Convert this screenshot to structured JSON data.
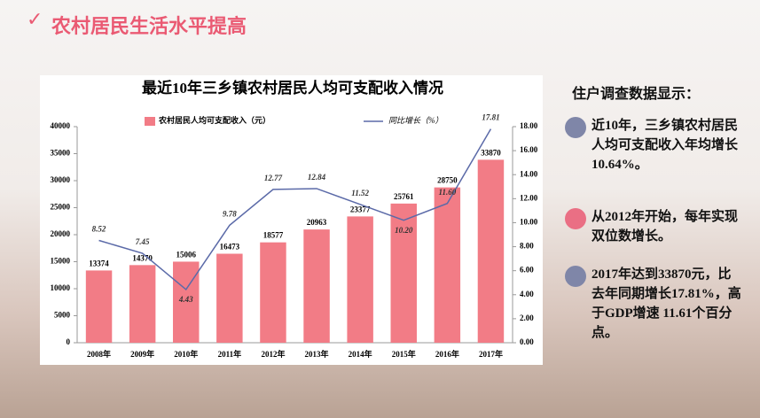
{
  "header": {
    "title": "农村居民生活水平提高"
  },
  "chart_data": {
    "type": "bar",
    "title": "最近10年三乡镇农村居民人均可支配收入情况",
    "categories": [
      "2008年",
      "2009年",
      "2010年",
      "2011年",
      "2012年",
      "2013年",
      "2014年",
      "2015年",
      "2016年",
      "2017年"
    ],
    "series": [
      {
        "name": "农村居民人均可支配收入（元）",
        "color": "#f27c86",
        "values": [
          13374,
          14370,
          15006,
          16473,
          18577,
          20963,
          23377,
          25761,
          28750,
          33870
        ]
      },
      {
        "name": "同比增长（%）",
        "type": "line",
        "axis": "y2",
        "color": "#5b6aa8",
        "values": [
          8.52,
          7.45,
          4.43,
          9.78,
          12.77,
          12.84,
          11.52,
          10.2,
          11.6,
          17.81
        ],
        "value_labels": [
          "8.52",
          "7.45",
          "4.43",
          "9.78",
          "12.77",
          "12.84",
          "11.52",
          "10.20",
          "11.60",
          "17.81"
        ]
      }
    ],
    "ylim": [
      0,
      40000
    ],
    "yticks": [
      0,
      5000,
      10000,
      15000,
      20000,
      25000,
      30000,
      35000,
      40000
    ],
    "y2lim": [
      0,
      18
    ],
    "y2ticks": [
      {
        "value": 0,
        "label": "0.00"
      },
      {
        "value": 2,
        "label": "2.00"
      },
      {
        "value": 4,
        "label": "4.00"
      },
      {
        "value": 6,
        "label": "6.00"
      },
      {
        "value": 8,
        "label": "8.00"
      },
      {
        "value": 10,
        "label": "10.00"
      },
      {
        "value": 12,
        "label": "12.00"
      },
      {
        "value": 14,
        "label": "14.00"
      },
      {
        "value": 16,
        "label": "16.00"
      },
      {
        "value": 18,
        "label": "18.00"
      }
    ],
    "grid": false
  },
  "panel": {
    "heading": "住户调查数据显示：",
    "items": [
      "近10年，三乡镇农村居民人均可支配收入年均增长10.64%。",
      "从2012年开始，每年实现双位数增长。",
      "2017年达到33870元，比去年同期增长17.81%，高于GDP增速 11.61个百分点。"
    ]
  }
}
